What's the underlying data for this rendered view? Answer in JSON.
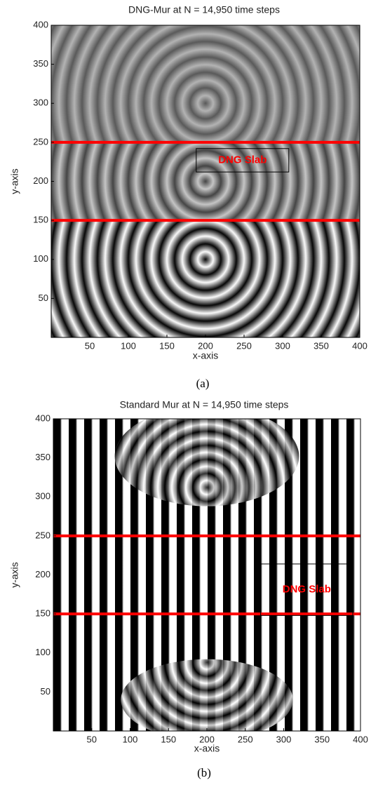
{
  "chart_data": [
    {
      "type": "image",
      "title": "DNG-Mur at N = 14,950 time steps",
      "x_label": "x-axis",
      "y_label": "y-axis",
      "xlim": [
        0,
        400
      ],
      "ylim": [
        0,
        400
      ],
      "xticks": [
        50,
        100,
        150,
        200,
        250,
        300,
        350,
        400
      ],
      "yticks": [
        50,
        100,
        150,
        200,
        250,
        300,
        350,
        400
      ],
      "hlines": [
        250,
        150
      ],
      "hline_color": "#ff0000",
      "annotation": "DNG Slab",
      "annotation_color": "#ff0000",
      "caption": "(a)"
    },
    {
      "type": "image",
      "title": "Standard Mur at N = 14,950 time steps",
      "x_label": "x-axis",
      "y_label": "y-axis",
      "xlim": [
        0,
        400
      ],
      "ylim": [
        0,
        400
      ],
      "xticks": [
        50,
        100,
        150,
        200,
        250,
        300,
        350,
        400
      ],
      "yticks": [
        50,
        100,
        150,
        200,
        250,
        300,
        350,
        400
      ],
      "hlines": [
        250,
        150
      ],
      "hline_color": "#ff0000",
      "annotation": "DNG Slab",
      "annotation_color": "#ff0000",
      "caption": "(b)"
    }
  ]
}
